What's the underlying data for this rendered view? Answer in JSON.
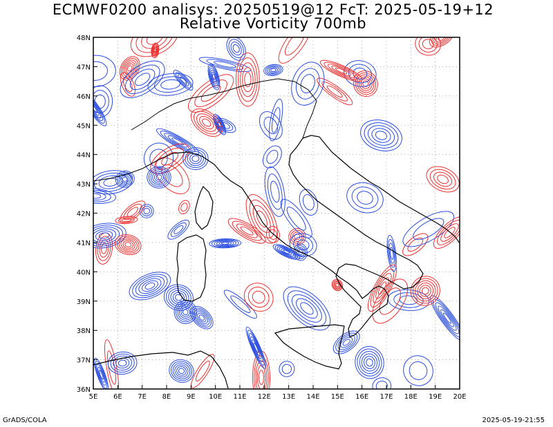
{
  "title_line1": "ECMWF0200 analisys: 20250519@12 FcT: 2025-05-19+12",
  "title_line2": "Relative Vorticity 700mb",
  "footer_left": "GrADS/COLA",
  "footer_right": "2025-05-19-21:55",
  "map": {
    "lon_range": [
      5,
      20
    ],
    "lat_range": [
      36,
      48
    ],
    "lon_ticks": [
      "5E",
      "6E",
      "7E",
      "8E",
      "9E",
      "10E",
      "11E",
      "12E",
      "13E",
      "14E",
      "15E",
      "16E",
      "17E",
      "18E",
      "19E",
      "20E"
    ],
    "lat_ticks": [
      "36N",
      "37N",
      "38N",
      "39N",
      "40N",
      "41N",
      "42N",
      "43N",
      "44N",
      "45N",
      "46N",
      "47N",
      "48N"
    ],
    "grid": "dotted",
    "positive_contour_color": "#ee3030",
    "negative_contour_color": "#2a4de0",
    "coastline_color": "#000000"
  }
}
